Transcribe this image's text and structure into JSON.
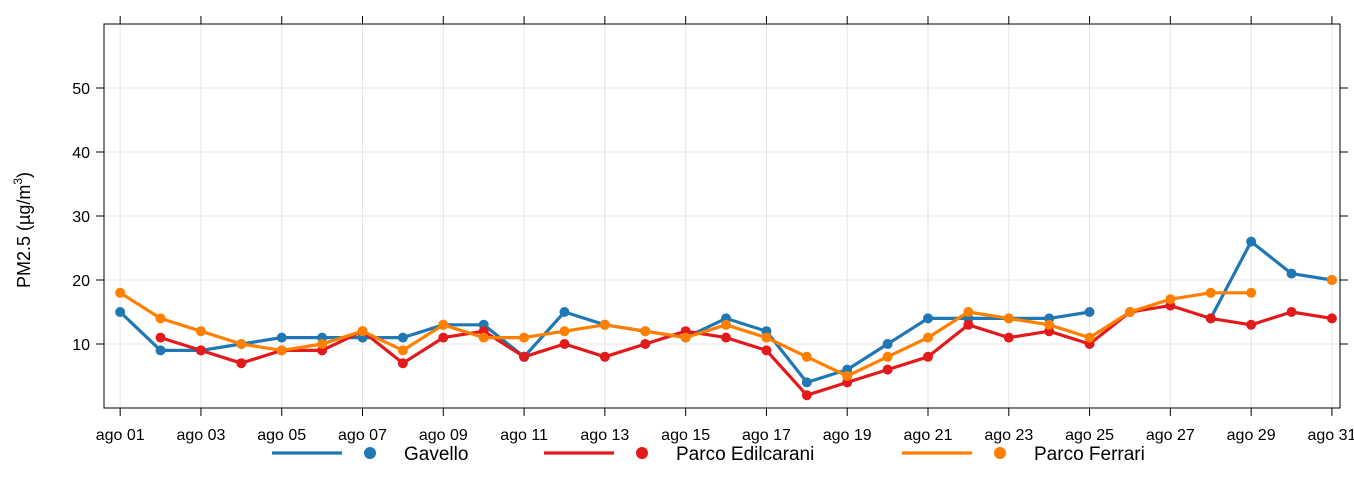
{
  "chart_data": {
    "type": "line",
    "ylabel": "PM2.5 (µg/m",
    "ylabel_sup": "3",
    "ylabel_close": ")",
    "ylim": [
      0,
      60
    ],
    "yticks": [
      10,
      20,
      30,
      40,
      50
    ],
    "xlim": [
      0.6,
      31.2
    ],
    "x_tick_labels": [
      "ago 01",
      "ago 03",
      "ago 05",
      "ago 07",
      "ago 09",
      "ago 11",
      "ago 13",
      "ago 15",
      "ago 17",
      "ago 19",
      "ago 21",
      "ago 23",
      "ago 25",
      "ago 27",
      "ago 29",
      "ago 31"
    ],
    "x_tick_days": [
      1,
      3,
      5,
      7,
      9,
      11,
      13,
      15,
      17,
      19,
      21,
      23,
      25,
      27,
      29,
      31
    ],
    "grid": true,
    "legend_position": "bottom",
    "series": [
      {
        "name": "Gavello",
        "color": "#1f78b4",
        "points": [
          [
            1,
            15
          ],
          [
            2,
            9
          ],
          [
            3,
            9
          ],
          [
            4,
            10
          ],
          [
            5,
            11
          ],
          [
            6,
            11
          ],
          [
            7,
            11
          ],
          [
            8,
            11
          ],
          [
            9,
            13
          ],
          [
            10,
            13
          ],
          [
            11,
            8
          ],
          [
            12,
            15
          ],
          [
            13,
            13
          ],
          [
            14,
            12
          ],
          [
            15,
            11
          ],
          [
            16,
            14
          ],
          [
            17,
            12
          ],
          [
            18,
            4
          ],
          [
            19,
            6
          ],
          [
            20,
            10
          ],
          [
            21,
            14
          ],
          [
            22,
            14
          ],
          [
            23,
            14
          ],
          [
            24,
            14
          ],
          [
            25,
            15
          ],
          [
            28,
            14
          ],
          [
            29,
            26
          ],
          [
            30,
            21
          ],
          [
            31,
            20
          ]
        ]
      },
      {
        "name": "Parco Edilcarani",
        "color": "#e31a1c",
        "points": [
          [
            2,
            11
          ],
          [
            3,
            9
          ],
          [
            4,
            7
          ],
          [
            5,
            9
          ],
          [
            6,
            9
          ],
          [
            7,
            12
          ],
          [
            8,
            7
          ],
          [
            9,
            11
          ],
          [
            10,
            12
          ],
          [
            11,
            8
          ],
          [
            12,
            10
          ],
          [
            13,
            8
          ],
          [
            14,
            10
          ],
          [
            15,
            12
          ],
          [
            16,
            11
          ],
          [
            17,
            9
          ],
          [
            18,
            2
          ],
          [
            19,
            4
          ],
          [
            20,
            6
          ],
          [
            21,
            8
          ],
          [
            22,
            13
          ],
          [
            23,
            11
          ],
          [
            24,
            12
          ],
          [
            25,
            10
          ],
          [
            26,
            15
          ],
          [
            27,
            16
          ],
          [
            28,
            14
          ],
          [
            29,
            13
          ],
          [
            30,
            15
          ],
          [
            31,
            14
          ]
        ]
      },
      {
        "name": "Parco Ferrari",
        "color": "#ff7f00",
        "points": [
          [
            1,
            18
          ],
          [
            2,
            14
          ],
          [
            3,
            12
          ],
          [
            4,
            10
          ],
          [
            5,
            9
          ],
          [
            6,
            10
          ],
          [
            7,
            12
          ],
          [
            8,
            9
          ],
          [
            9,
            13
          ],
          [
            10,
            11
          ],
          [
            11,
            11
          ],
          [
            12,
            12
          ],
          [
            13,
            13
          ],
          [
            14,
            12
          ],
          [
            15,
            11
          ],
          [
            16,
            13
          ],
          [
            17,
            11
          ],
          [
            18,
            8
          ],
          [
            19,
            5
          ],
          [
            20,
            8
          ],
          [
            21,
            11
          ],
          [
            22,
            15
          ],
          [
            23,
            14
          ],
          [
            24,
            13
          ],
          [
            25,
            11
          ],
          [
            26,
            15
          ],
          [
            27,
            17
          ],
          [
            28,
            18
          ],
          [
            29,
            18
          ],
          [
            31,
            20
          ]
        ]
      }
    ]
  }
}
